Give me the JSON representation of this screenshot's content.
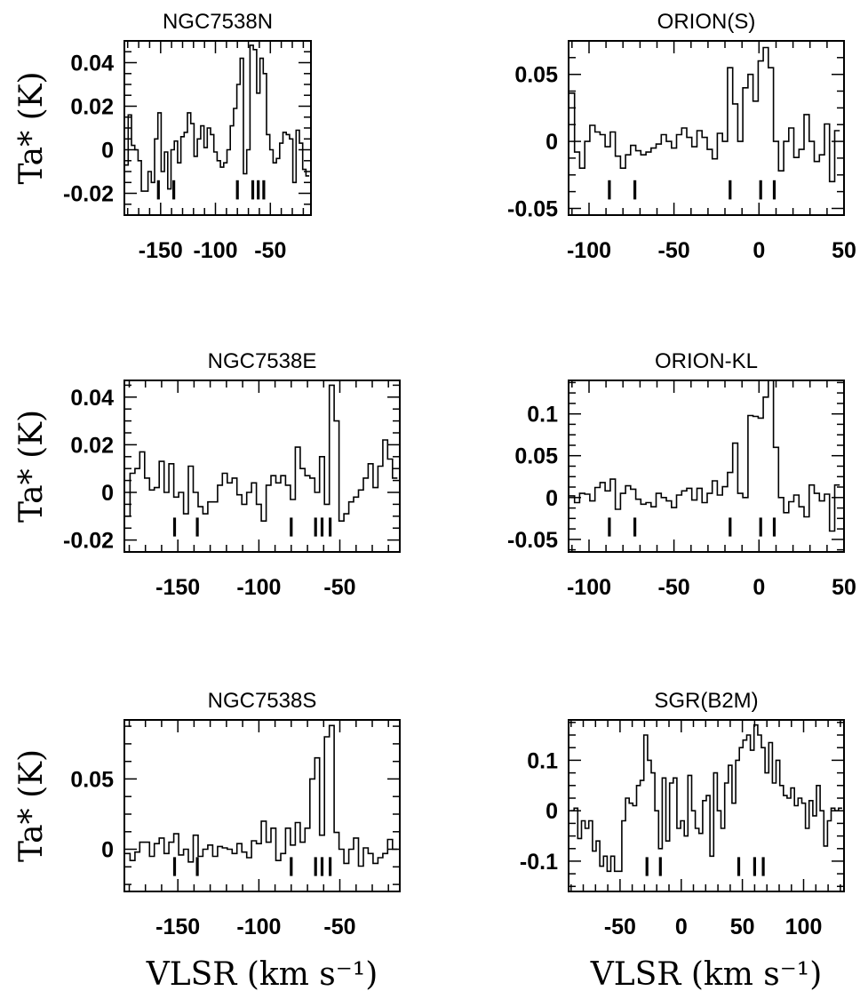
{
  "chart_data": [
    {
      "type": "line",
      "step": true,
      "title": "NGC7538N",
      "ylabel": "Ta* (K)",
      "xlim": [
        -183,
        -13
      ],
      "ylim": [
        -0.03,
        0.05
      ],
      "xticks": [
        -150,
        -100,
        -50
      ],
      "yticks": [
        0.04,
        0.02,
        0,
        -0.02
      ],
      "yticklabels": [
        "0.04",
        "0.02",
        "0",
        "-0.02"
      ],
      "markers": [
        -152,
        -138,
        -80,
        -66,
        -61,
        -56
      ],
      "x": [
        -181,
        -178,
        -175,
        -172,
        -169,
        -166,
        -163,
        -160,
        -157,
        -154,
        -151,
        -148,
        -145,
        -142,
        -139,
        -136,
        -133,
        -130,
        -127,
        -124,
        -121,
        -118,
        -115,
        -112,
        -109,
        -106,
        -103,
        -100,
        -97,
        -94,
        -91,
        -88,
        -85,
        -82,
        -79,
        -76,
        -73,
        -70,
        -67,
        -64,
        -61,
        -58,
        -55,
        -52,
        -49,
        -46,
        -43,
        -40,
        -37,
        -34,
        -31,
        -28,
        -25,
        -22,
        -19,
        -16
      ],
      "y": [
        -0.007,
        0.016,
        0.002,
        0.0,
        -0.005,
        -0.019,
        -0.019,
        -0.01,
        -0.015,
        0.005,
        0.017,
        -0.01,
        -0.001,
        -0.018,
        0.0,
        0.004,
        -0.006,
        0.006,
        0.008,
        0.017,
        0.012,
        -0.003,
        0.005,
        0.011,
        0.001,
        0.01,
        0.007,
        -0.001,
        -0.005,
        -0.008,
        -0.006,
        0.0,
        0.011,
        0.019,
        0.03,
        0.042,
        -0.011,
        0.0,
        0.048,
        0.046,
        0.026,
        0.042,
        0.035,
        0.007,
        0.0,
        -0.006,
        -0.004,
        0.003,
        0.008,
        0.007,
        0.005,
        -0.015,
        0.009,
        0.003,
        -0.009,
        -0.012
      ]
    },
    {
      "type": "line",
      "step": true,
      "title": "ORION(S)",
      "xlim": [
        -112,
        50
      ],
      "ylim": [
        -0.055,
        0.075
      ],
      "xticks": [
        -100,
        -50,
        0,
        50
      ],
      "yticks": [
        0.05,
        0,
        -0.05
      ],
      "yticklabels": [
        "0.05",
        "0",
        "-0.05"
      ],
      "markers": [
        -88,
        -73,
        -17,
        1,
        9
      ],
      "x": [
        -110,
        -107,
        -104,
        -101,
        -98,
        -95,
        -92,
        -89,
        -86,
        -83,
        -80,
        -77,
        -74,
        -71,
        -68,
        -65,
        -62,
        -59,
        -56,
        -53,
        -50,
        -47,
        -44,
        -41,
        -38,
        -35,
        -32,
        -29,
        -26,
        -23,
        -20,
        -17,
        -14,
        -11,
        -8,
        -5,
        -2,
        1,
        4,
        7,
        10,
        13,
        16,
        19,
        22,
        25,
        28,
        31,
        34,
        37,
        40,
        43,
        46
      ],
      "y": [
        0.036,
        -0.008,
        -0.02,
        0.0,
        0.012,
        0.007,
        0.005,
        -0.004,
        0.007,
        -0.011,
        -0.02,
        -0.01,
        -0.003,
        -0.007,
        -0.01,
        -0.008,
        -0.005,
        -0.002,
        0.005,
        0.0,
        -0.005,
        0.005,
        0.01,
        0.003,
        -0.004,
        0.008,
        0.003,
        -0.006,
        -0.013,
        0.006,
        0.0,
        0.055,
        0.028,
        0.0,
        0.04,
        0.05,
        0.03,
        0.06,
        0.07,
        0.055,
        0.0,
        -0.022,
        0.0,
        0.01,
        -0.012,
        -0.006,
        0.02,
        0.0,
        -0.015,
        -0.01,
        0.013,
        -0.03,
        0.008
      ]
    },
    {
      "type": "line",
      "step": true,
      "title": "NGC7538E",
      "ylabel": "Ta* (K)",
      "xlim": [
        -183,
        -13
      ],
      "ylim": [
        -0.025,
        0.047
      ],
      "xticks": [
        -150,
        -100,
        -50
      ],
      "yticks": [
        0.04,
        0.02,
        0,
        -0.02
      ],
      "yticklabels": [
        "0.04",
        "0.02",
        "0",
        "-0.02"
      ],
      "markers": [
        -152,
        -138,
        -80,
        -65,
        -61,
        -56
      ],
      "x": [
        -181,
        -178,
        -175,
        -172,
        -169,
        -166,
        -163,
        -160,
        -157,
        -154,
        -151,
        -148,
        -145,
        -142,
        -139,
        -136,
        -133,
        -130,
        -127,
        -124,
        -121,
        -118,
        -115,
        -112,
        -109,
        -106,
        -103,
        -100,
        -97,
        -94,
        -91,
        -88,
        -85,
        -82,
        -79,
        -76,
        -73,
        -70,
        -67,
        -64,
        -61,
        -58,
        -55,
        -52,
        -49,
        -46,
        -43,
        -40,
        -37,
        -34,
        -31,
        -28,
        -25,
        -22,
        -19,
        -16
      ],
      "y": [
        -0.01,
        0.008,
        0.01,
        0.017,
        0.006,
        0.001,
        0.002,
        0.013,
        0.0,
        0.012,
        -0.002,
        0.0,
        -0.009,
        0.011,
        0.0,
        -0.006,
        -0.009,
        -0.004,
        -0.004,
        0.003,
        0.008,
        0.004,
        0.006,
        -0.001,
        -0.005,
        0.0,
        0.004,
        -0.005,
        -0.012,
        0.003,
        0.007,
        0.004,
        0.007,
        0.003,
        -0.003,
        0.019,
        0.01,
        0.007,
        0.006,
        0.0,
        0.015,
        -0.005,
        0.045,
        0.03,
        -0.012,
        -0.009,
        -0.004,
        -0.002,
        0.001,
        0.006,
        0.012,
        0.002,
        0.011,
        0.022,
        0.014,
        0.006
      ]
    },
    {
      "type": "line",
      "step": true,
      "title": "ORION-KL",
      "xlim": [
        -112,
        50
      ],
      "ylim": [
        -0.065,
        0.14
      ],
      "xticks": [
        -100,
        -50,
        0,
        50
      ],
      "yticks": [
        0.1,
        0.05,
        0,
        -0.05
      ],
      "yticklabels": [
        "0.1",
        "0.05",
        "0",
        "-0.05"
      ],
      "markers": [
        -88,
        -73,
        -17,
        1,
        9
      ],
      "x": [
        -110,
        -107,
        -104,
        -101,
        -98,
        -95,
        -92,
        -89,
        -86,
        -83,
        -80,
        -77,
        -74,
        -71,
        -68,
        -65,
        -62,
        -59,
        -56,
        -53,
        -50,
        -47,
        -44,
        -41,
        -38,
        -35,
        -32,
        -29,
        -26,
        -23,
        -20,
        -17,
        -14,
        -11,
        -8,
        -5,
        -2,
        1,
        4,
        7,
        10,
        13,
        16,
        19,
        22,
        25,
        28,
        31,
        34,
        37,
        40,
        43,
        46
      ],
      "y": [
        0.002,
        -0.006,
        0.005,
        0.004,
        -0.004,
        0.012,
        0.018,
        0.008,
        0.022,
        -0.014,
        0.005,
        0.014,
        0.01,
        -0.002,
        -0.008,
        -0.006,
        -0.011,
        0.005,
        0.0,
        -0.004,
        -0.012,
        0.003,
        0.008,
        0.011,
        -0.003,
        0.011,
        -0.006,
        0.005,
        0.02,
        0.003,
        0.013,
        0.03,
        0.065,
        0.005,
        0.0,
        0.098,
        0.097,
        0.095,
        0.12,
        0.14,
        0.06,
        0.0,
        -0.018,
        -0.005,
        0.003,
        -0.011,
        -0.023,
        0.015,
        0.005,
        -0.004,
        0.004,
        -0.04,
        0.015
      ]
    },
    {
      "type": "line",
      "step": true,
      "title": "NGC7538S",
      "ylabel": "Ta* (K)",
      "xlabel": "VLSR (km s⁻¹)",
      "xlim": [
        -183,
        -13
      ],
      "ylim": [
        -0.03,
        0.092
      ],
      "xticks": [
        -150,
        -100,
        -50
      ],
      "yticks": [
        0.05,
        0
      ],
      "yticklabels": [
        "0.05",
        "0"
      ],
      "markers": [
        -152,
        -138,
        -80,
        -65,
        -61,
        -56
      ],
      "x": [
        -181,
        -178,
        -175,
        -172,
        -169,
        -166,
        -163,
        -160,
        -157,
        -154,
        -151,
        -148,
        -145,
        -142,
        -139,
        -136,
        -133,
        -130,
        -127,
        -124,
        -121,
        -118,
        -115,
        -112,
        -109,
        -106,
        -103,
        -100,
        -97,
        -94,
        -91,
        -88,
        -85,
        -82,
        -79,
        -76,
        -73,
        -70,
        -67,
        -64,
        -61,
        -58,
        -55,
        -52,
        -49,
        -46,
        -43,
        -40,
        -37,
        -34,
        -31,
        -28,
        -25,
        -22,
        -19,
        -16
      ],
      "y": [
        -0.003,
        -0.008,
        -0.002,
        0.005,
        0.005,
        -0.005,
        0.004,
        0.008,
        -0.003,
        0.005,
        0.011,
        -0.004,
        0.0,
        -0.009,
        0.01,
        -0.005,
        0.0,
        0.003,
        -0.005,
        0.002,
        0.001,
        0.0,
        -0.003,
        0.004,
        -0.002,
        -0.006,
        0.006,
        0.004,
        0.02,
        0.005,
        0.015,
        -0.008,
        -0.003,
        0.015,
        0.003,
        0.019,
        0.005,
        0.015,
        0.05,
        0.065,
        0.01,
        0.08,
        0.088,
        0.012,
        0.0,
        -0.01,
        0.0,
        0.008,
        -0.012,
        0.001,
        -0.003,
        -0.01,
        -0.006,
        -0.003,
        0.007,
        0.0
      ]
    },
    {
      "type": "line",
      "step": true,
      "title": "SGR(B2M)",
      "xlabel": "VLSR (km s⁻¹)",
      "xlim": [
        -92,
        133
      ],
      "ylim": [
        -0.16,
        0.18
      ],
      "xticks": [
        -50,
        0,
        50,
        100
      ],
      "yticks": [
        0.1,
        0,
        -0.1
      ],
      "yticklabels": [
        "0.1",
        "0",
        "-0.1"
      ],
      "markers": [
        -28,
        -17,
        47,
        60,
        67
      ],
      "x": [
        -89,
        -86,
        -83,
        -80,
        -77,
        -74,
        -71,
        -68,
        -65,
        -62,
        -59,
        -56,
        -53,
        -50,
        -47,
        -44,
        -41,
        -38,
        -35,
        -32,
        -29,
        -26,
        -23,
        -20,
        -17,
        -14,
        -11,
        -8,
        -5,
        -2,
        1,
        4,
        7,
        10,
        13,
        16,
        19,
        22,
        25,
        28,
        31,
        34,
        37,
        40,
        43,
        46,
        49,
        52,
        55,
        58,
        61,
        64,
        67,
        70,
        73,
        76,
        79,
        82,
        85,
        88,
        91,
        94,
        97,
        100,
        103,
        106,
        109,
        112,
        115,
        118,
        121,
        124,
        127,
        130
      ],
      "y": [
        0.0,
        0.005,
        -0.055,
        -0.02,
        -0.035,
        -0.02,
        -0.08,
        -0.06,
        -0.11,
        -0.09,
        -0.12,
        -0.09,
        -0.12,
        -0.12,
        -0.02,
        0.025,
        0.015,
        0.01,
        0.05,
        0.06,
        0.15,
        0.1,
        0.075,
        0.0,
        -0.075,
        0.065,
        -0.06,
        0.055,
        0.065,
        -0.035,
        -0.02,
        -0.05,
        0.07,
        0.0,
        -0.035,
        -0.045,
        0.02,
        0.03,
        -0.09,
        0.075,
        0.0,
        -0.035,
        0.055,
        0.09,
        0.015,
        0.1,
        0.125,
        0.14,
        0.15,
        0.12,
        0.17,
        0.15,
        0.125,
        0.075,
        0.135,
        0.055,
        0.1,
        0.05,
        0.03,
        0.025,
        0.045,
        0.01,
        0.025,
        0.015,
        -0.035,
        0.02,
        -0.01,
        0.05,
        0.0,
        -0.07,
        -0.02,
        0.005,
        0.0,
        0.005
      ]
    }
  ]
}
